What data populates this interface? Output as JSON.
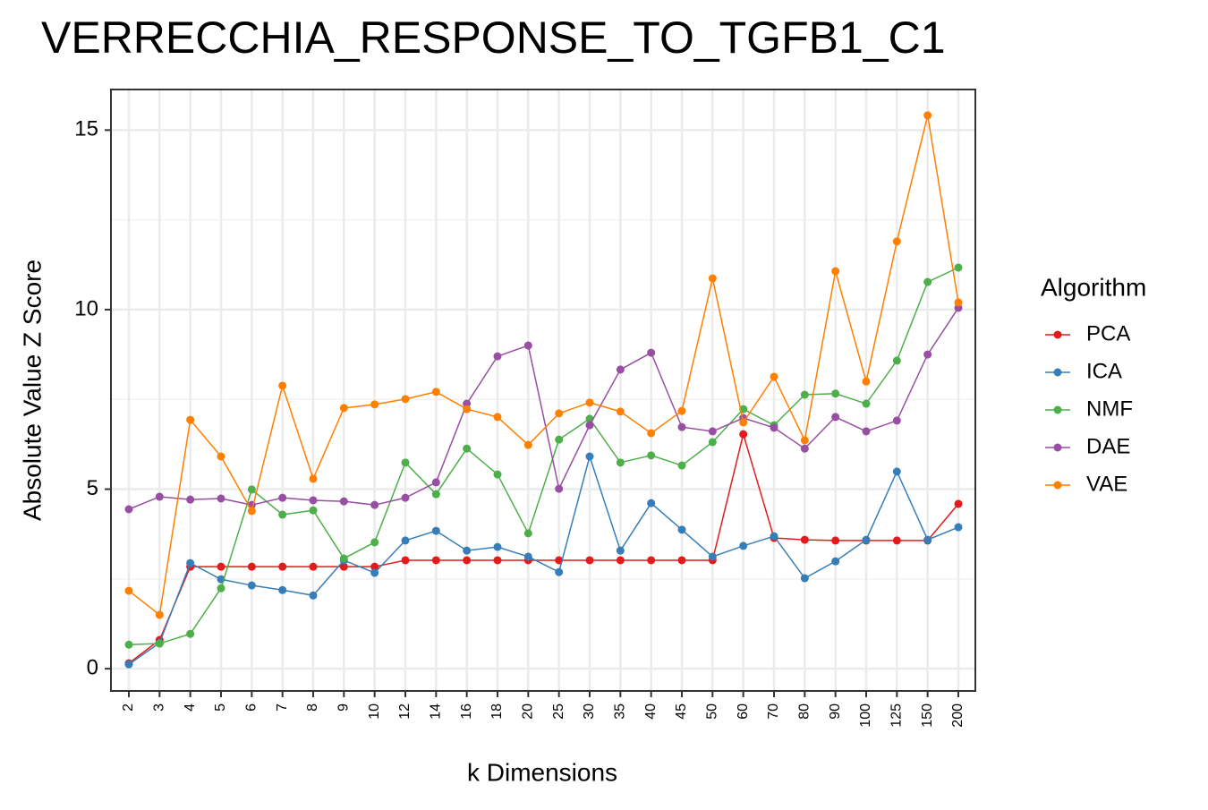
{
  "chart_data": {
    "type": "line",
    "title": "VERRECCHIA_RESPONSE_TO_TGFB1_C1",
    "x_label": "k Dimensions",
    "y_label": "Absolute Value Z Score",
    "legend_title": "Algorithm",
    "legend_position": "right",
    "grid": true,
    "categories": [
      "2",
      "3",
      "4",
      "5",
      "6",
      "7",
      "8",
      "9",
      "10",
      "12",
      "14",
      "16",
      "18",
      "20",
      "25",
      "30",
      "35",
      "40",
      "45",
      "50",
      "60",
      "70",
      "80",
      "90",
      "100",
      "125",
      "150",
      "200"
    ],
    "ylim": [
      -0.62,
      16.13
    ],
    "yticks": [
      0,
      5,
      10,
      15
    ],
    "series": [
      {
        "name": "PCA",
        "color": "#e41a1c",
        "values": [
          0.15,
          0.8,
          2.84,
          2.84,
          2.84,
          2.84,
          2.84,
          2.84,
          2.84,
          3.02,
          3.02,
          3.02,
          3.02,
          3.02,
          3.02,
          3.02,
          3.02,
          3.02,
          3.02,
          3.02,
          6.53,
          3.64,
          3.59,
          3.57,
          3.57,
          3.57,
          3.57,
          4.59
        ]
      },
      {
        "name": "ICA",
        "color": "#377eb8",
        "values": [
          0.12,
          0.72,
          2.94,
          2.49,
          2.32,
          2.19,
          2.04,
          3.02,
          2.67,
          3.57,
          3.84,
          3.29,
          3.39,
          3.12,
          2.69,
          5.91,
          3.29,
          4.61,
          3.87,
          3.12,
          3.42,
          3.69,
          2.52,
          2.99,
          3.59,
          5.49,
          3.59,
          3.94
        ]
      },
      {
        "name": "NMF",
        "color": "#4daf4a",
        "values": [
          0.67,
          0.7,
          0.97,
          2.24,
          4.99,
          4.29,
          4.41,
          3.07,
          3.52,
          5.74,
          4.86,
          6.13,
          5.41,
          3.77,
          6.38,
          6.96,
          5.74,
          5.94,
          5.66,
          6.31,
          7.23,
          6.78,
          7.63,
          7.66,
          7.38,
          8.58,
          10.77,
          11.17
        ]
      },
      {
        "name": "DAE",
        "color": "#984ea3",
        "values": [
          4.44,
          4.79,
          4.71,
          4.74,
          4.56,
          4.76,
          4.69,
          4.66,
          4.56,
          4.76,
          5.19,
          7.38,
          8.7,
          9.0,
          5.01,
          6.78,
          8.33,
          8.8,
          6.73,
          6.61,
          6.98,
          6.71,
          6.13,
          7.01,
          6.61,
          6.91,
          8.75,
          10.05
        ]
      },
      {
        "name": "VAE",
        "color": "#ff7f00",
        "values": [
          2.17,
          1.5,
          6.93,
          5.91,
          4.39,
          7.88,
          5.29,
          7.26,
          7.36,
          7.51,
          7.71,
          7.23,
          7.01,
          6.23,
          7.11,
          7.41,
          7.16,
          6.56,
          7.18,
          10.87,
          6.86,
          8.13,
          6.36,
          11.07,
          8.0,
          11.9,
          15.41,
          10.2
        ]
      }
    ]
  }
}
